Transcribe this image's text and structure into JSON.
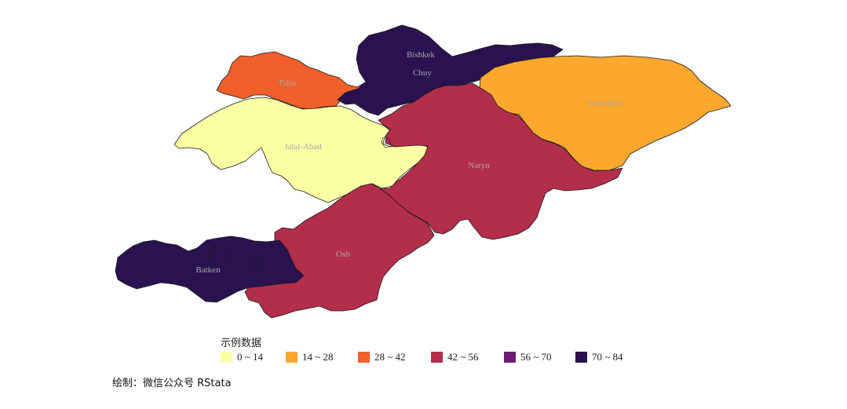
{
  "map": {
    "regions": [
      {
        "id": "talas",
        "name": "Talas",
        "bin": 2
      },
      {
        "id": "chuy",
        "name": "Chuy",
        "bin": 5
      },
      {
        "id": "ysyk-kol",
        "name": "Ysyk-Köl",
        "bin": 1
      },
      {
        "id": "jalal-abad",
        "name": "Jalal-Abad",
        "bin": 0
      },
      {
        "id": "naryn",
        "name": "Naryn",
        "bin": 3
      },
      {
        "id": "osh",
        "name": "Osh",
        "bin": 3
      },
      {
        "id": "batken",
        "name": "Batken",
        "bin": 5
      }
    ],
    "city_labels": [
      {
        "id": "bishkek",
        "name": "Bishkek"
      }
    ]
  },
  "legend": {
    "title": "示例数据",
    "items": [
      {
        "label": "0 ~ 14",
        "color": "#fcffa4"
      },
      {
        "label": "14 ~ 28",
        "color": "#fca82f"
      },
      {
        "label": "28 ~ 42",
        "color": "#f1602a"
      },
      {
        "label": "42 ~ 56",
        "color": "#b32e4a"
      },
      {
        "label": "56 ~ 70",
        "color": "#6b1d70"
      },
      {
        "label": "70 ~ 84",
        "color": "#2a1250"
      }
    ]
  },
  "caption": "绘制：微信公众号 RStata"
}
